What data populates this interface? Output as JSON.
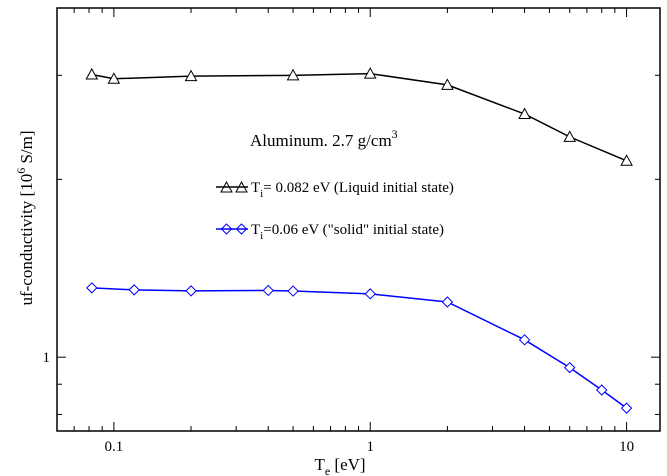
{
  "chart_data": {
    "type": "line",
    "title": "",
    "annotation": {
      "main": "Aluminum. 2.7 g/cm",
      "sup": "3"
    },
    "xlabel": {
      "main": "T",
      "sub": "e",
      "rest": " [eV]"
    },
    "ylabel": {
      "main": "uf-conductivity [10",
      "sup": "6",
      "rest": " S/m]"
    },
    "x_scale": "log",
    "y_scale": "log",
    "xlim": [
      0.06,
      13.5
    ],
    "ylim": [
      0.75,
      3.9
    ],
    "x_ticks": [
      {
        "value": 0.1,
        "label": "0.1"
      },
      {
        "value": 1,
        "label": "1"
      },
      {
        "value": 10,
        "label": "10"
      }
    ],
    "y_ticks": [
      {
        "value": 1,
        "label": "1"
      }
    ],
    "grid": false,
    "legend_position": "center",
    "series": [
      {
        "name_main": "T",
        "name_sub": "i",
        "name_rest": "= 0.082 eV (Liquid initial state)",
        "color": "#000000",
        "marker": "triangle",
        "x": [
          0.082,
          0.1,
          0.2,
          0.5,
          1,
          2,
          4,
          6,
          10
        ],
        "y": [
          3.01,
          2.96,
          2.99,
          3.0,
          3.02,
          2.89,
          2.58,
          2.36,
          2.15
        ]
      },
      {
        "name_main": "T",
        "name_sub": "i",
        "name_rest": "=0.06 eV (\"solid\" initial state)",
        "color": "#0000ff",
        "marker": "diamond",
        "x": [
          0.082,
          0.12,
          0.2,
          0.4,
          0.5,
          1,
          2,
          4,
          6,
          8,
          10
        ],
        "y": [
          1.31,
          1.3,
          1.295,
          1.297,
          1.294,
          1.28,
          1.24,
          1.07,
          0.96,
          0.88,
          0.82
        ]
      }
    ]
  }
}
